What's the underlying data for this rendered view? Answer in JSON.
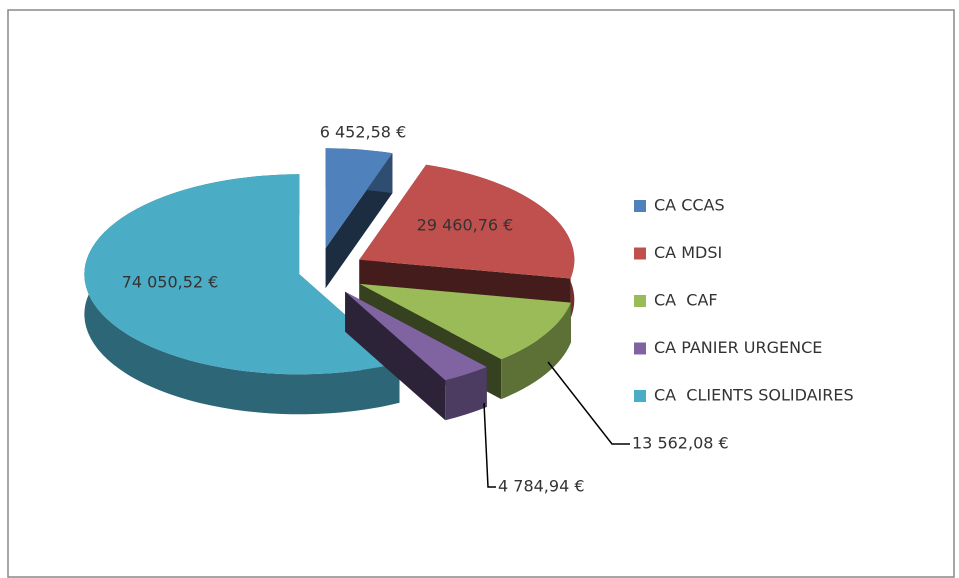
{
  "chart_data": {
    "type": "pie",
    "categories": [
      "CA CCAS",
      "CA MDSI",
      "CA  CAF",
      "CA PANIER URGENCE",
      "CA  CLIENTS SOLIDAIRES"
    ],
    "values": [
      6452.58,
      29460.76,
      13562.08,
      4784.94,
      74050.52
    ],
    "value_labels": [
      "6 452,58 €",
      "29 460,76 €",
      "13 562,08 €",
      "4 784,94 €",
      "74 050,52 €"
    ],
    "colors": [
      "#4f81bd",
      "#c0504d",
      "#9bbb59",
      "#8064a2",
      "#4bacc6"
    ],
    "legend": "right"
  }
}
